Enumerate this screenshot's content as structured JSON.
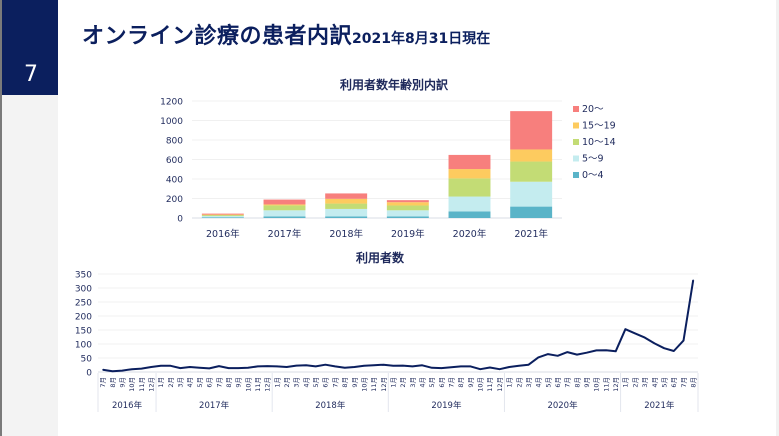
{
  "page": {
    "number": "7",
    "title": "オンライン診療の患者内訳",
    "subtitle": "2021年8月31日現在"
  },
  "colors": {
    "navy": "#0b1f5e",
    "age_0_4": "#5ab4c8",
    "age_5_9": "#c4ecef",
    "age_10_14": "#c3dc75",
    "age_15_19": "#fdcb5f",
    "age_20_plus": "#f77f7d"
  },
  "chart_data": [
    {
      "type": "bar",
      "stacked": true,
      "title": "利用者数年齢別内訳",
      "xlabel": "",
      "ylabel": "",
      "categories": [
        "2016年",
        "2017年",
        "2018年",
        "2019年",
        "2020年",
        "2021年"
      ],
      "ylim": [
        0,
        1200
      ],
      "yticks": [
        0,
        200,
        400,
        600,
        800,
        1000,
        1200
      ],
      "grid": true,
      "legend_position": "right",
      "series": [
        {
          "name": "0〜4",
          "color": "#5ab4c8",
          "values": [
            8,
            17,
            17,
            17,
            68,
            117
          ]
        },
        {
          "name": "5〜9",
          "color": "#c4ecef",
          "values": [
            12,
            62,
            76,
            62,
            152,
            255
          ]
        },
        {
          "name": "10〜14",
          "color": "#c3dc75",
          "values": [
            10,
            50,
            55,
            49,
            186,
            207
          ]
        },
        {
          "name": "15〜19",
          "color": "#fdcb5f",
          "values": [
            5,
            10,
            49,
            34,
            96,
            124
          ]
        },
        {
          "name": "20〜",
          "color": "#f77f7d",
          "values": [
            10,
            50,
            55,
            21,
            145,
            393
          ]
        }
      ]
    },
    {
      "type": "line",
      "title": "利用者数",
      "xlabel": "",
      "ylabel": "",
      "ylim": [
        0,
        350
      ],
      "yticks": [
        0,
        50,
        100,
        150,
        200,
        250,
        300,
        350
      ],
      "grid": true,
      "x": [
        "7月",
        "8月",
        "9月",
        "10月",
        "11月",
        "12月",
        "1月",
        "2月",
        "3月",
        "4月",
        "5月",
        "6月",
        "7月",
        "8月",
        "9月",
        "10月",
        "11月",
        "12月",
        "1月",
        "2月",
        "3月",
        "4月",
        "5月",
        "6月",
        "7月",
        "8月",
        "9月",
        "10月",
        "11月",
        "12月",
        "1月",
        "2月",
        "3月",
        "4月",
        "5月",
        "6月",
        "7月",
        "8月",
        "9月",
        "10月",
        "11月",
        "12月",
        "1月",
        "2月",
        "3月",
        "4月",
        "5月",
        "6月",
        "7月",
        "8月",
        "9月",
        "10月",
        "11月",
        "12月",
        "1月",
        "2月",
        "3月",
        "4月",
        "5月",
        "6月",
        "7月",
        "8月"
      ],
      "year_groups": [
        {
          "label": "2016年",
          "count": 6
        },
        {
          "label": "2017年",
          "count": 12
        },
        {
          "label": "2018年",
          "count": 12
        },
        {
          "label": "2019年",
          "count": 12
        },
        {
          "label": "2020年",
          "count": 12
        },
        {
          "label": "2021年",
          "count": 8
        }
      ],
      "series": [
        {
          "name": "利用者数",
          "color": "#0b1f5e",
          "values": [
            8,
            3,
            5,
            10,
            12,
            18,
            22,
            22,
            14,
            18,
            15,
            13,
            21,
            14,
            14,
            15,
            20,
            21,
            20,
            18,
            23,
            24,
            20,
            26,
            20,
            15,
            18,
            22,
            24,
            26,
            22,
            23,
            20,
            24,
            15,
            14,
            17,
            20,
            20,
            10,
            16,
            10,
            18,
            22,
            26,
            52,
            64,
            58,
            71,
            62,
            69,
            77,
            78,
            74,
            153,
            138,
            123,
            102,
            85,
            75,
            112,
            328
          ]
        }
      ]
    }
  ]
}
